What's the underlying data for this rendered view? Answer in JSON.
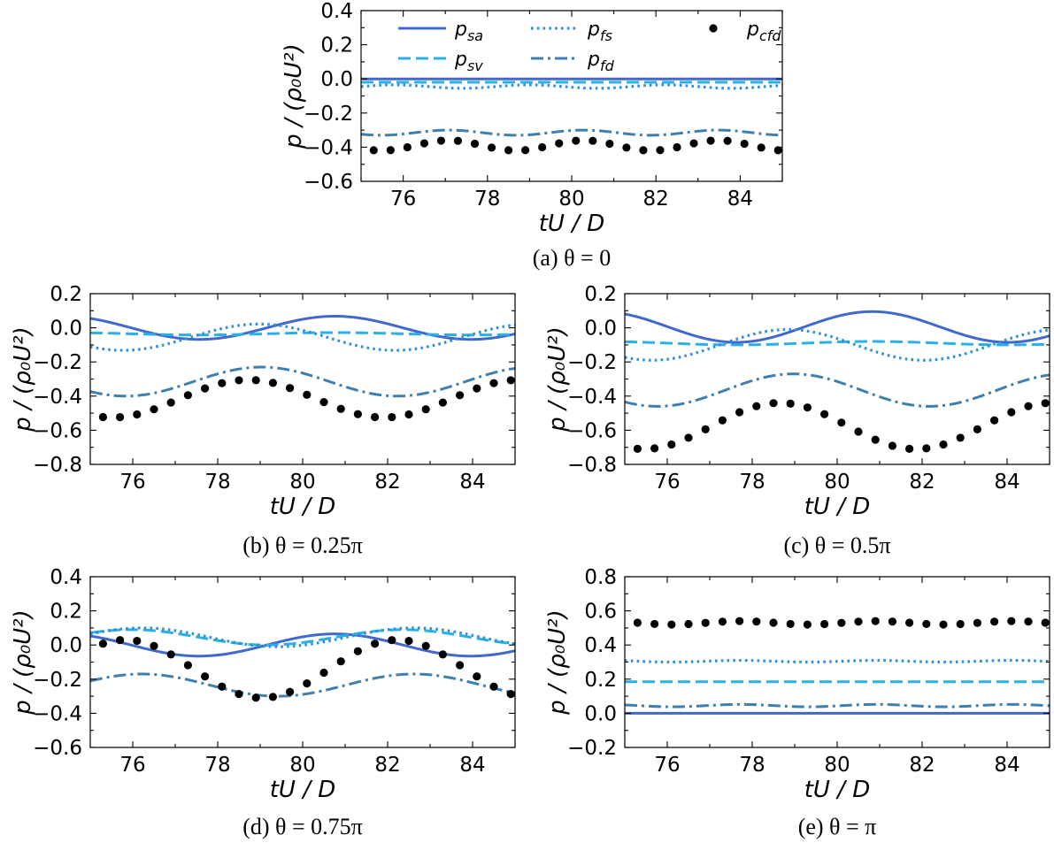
{
  "colors": {
    "p_sa": "#4169cc",
    "p_sv": "#29b0e8",
    "p_fs": "#2f8fe0",
    "p_fd": "#3f7fb0",
    "p_cfd": "#000000"
  },
  "legend": {
    "placement": "top (inside panel a)",
    "entries": [
      {
        "key": "p_sa",
        "base": "p",
        "sub": "sa",
        "style": "solid"
      },
      {
        "key": "p_sv",
        "base": "p",
        "sub": "sv",
        "style": "dashed"
      },
      {
        "key": "p_fs",
        "base": "p",
        "sub": "fs",
        "style": "dotted"
      },
      {
        "key": "p_fd",
        "base": "p",
        "sub": "fd",
        "style": "dashdot"
      },
      {
        "key": "p_cfd",
        "base": "p",
        "sub": "cfd",
        "style": "markers"
      }
    ]
  },
  "axis_labels": {
    "x": "tU / D",
    "y": "p / (ρ₀U²)"
  },
  "chart_data": [
    {
      "id": "a",
      "type": "line",
      "caption": "(a) θ = 0",
      "xlim": [
        75,
        85
      ],
      "ylim": [
        -0.6,
        0.4
      ],
      "xticks": [
        76,
        78,
        80,
        82,
        84
      ],
      "xtick_labels": [
        "76",
        "78",
        "80",
        "82",
        "84"
      ],
      "yticks": [
        -0.6,
        -0.4,
        -0.2,
        0.0,
        0.2,
        0.4
      ],
      "ytick_labels": [
        "−0.6",
        "−0.4",
        "−0.2",
        "0.0",
        "0.2",
        "0.4"
      ],
      "series": [
        {
          "key": "p_sa",
          "name": "p_sa",
          "mean": 0.0,
          "amplitude": 0.0,
          "period": 6.4,
          "phase": 0
        },
        {
          "key": "p_sv",
          "name": "p_sv",
          "mean": -0.02,
          "amplitude": 0.0,
          "period": 6.4,
          "phase": 0
        },
        {
          "key": "p_fs",
          "name": "p_fs",
          "mean": -0.045,
          "amplitude": 0.01,
          "period": 3.2,
          "phase": 0
        },
        {
          "key": "p_fd",
          "name": "p_fd",
          "mean": -0.315,
          "amplitude": 0.015,
          "period": 3.2,
          "phase": 0.6
        },
        {
          "key": "p_cfd",
          "name": "p_cfd",
          "mean": -0.39,
          "amplitude": 0.03,
          "period": 3.2,
          "phase": 0.6,
          "markers": {
            "start": 75.3,
            "step": 0.4
          }
        }
      ]
    },
    {
      "id": "b",
      "type": "line",
      "caption": "(b) θ = 0.25π",
      "xlim": [
        75,
        85
      ],
      "ylim": [
        -0.8,
        0.2
      ],
      "xticks": [
        76,
        78,
        80,
        82,
        84
      ],
      "xtick_labels": [
        "76",
        "78",
        "80",
        "82",
        "84"
      ],
      "yticks": [
        -0.8,
        -0.6,
        -0.4,
        -0.2,
        0.0,
        0.2
      ],
      "ytick_labels": [
        "−0.8",
        "−0.6",
        "−0.4",
        "−0.2",
        "0.0",
        "0.2"
      ],
      "series": [
        {
          "key": "p_sa",
          "name": "p_sa",
          "mean": 0.0,
          "amplitude": 0.068,
          "period": 6.4,
          "phase": 0.35
        },
        {
          "key": "p_sv",
          "name": "p_sv",
          "mean": -0.035,
          "amplitude": 0.007,
          "period": 6.4,
          "phase": 0.35
        },
        {
          "key": "p_fs",
          "name": "p_fs",
          "mean": -0.055,
          "amplitude": 0.077,
          "period": 6.4,
          "phase": 0.63
        },
        {
          "key": "p_fd",
          "name": "p_fd",
          "mean": -0.315,
          "amplitude": 0.085,
          "period": 6.4,
          "phase": 0.62
        },
        {
          "key": "p_cfd",
          "name": "p_cfd",
          "mean": -0.415,
          "amplitude": 0.11,
          "period": 6.4,
          "phase": 0.67,
          "markers": {
            "start": 75.3,
            "step": 0.4
          }
        }
      ]
    },
    {
      "id": "c",
      "type": "line",
      "caption": "(c) θ = 0.5π",
      "xlim": [
        75,
        85
      ],
      "ylim": [
        -0.8,
        0.2
      ],
      "xticks": [
        76,
        78,
        80,
        82,
        84
      ],
      "xtick_labels": [
        "76",
        "78",
        "80",
        "82",
        "84"
      ],
      "yticks": [
        -0.8,
        -0.6,
        -0.4,
        -0.2,
        0.0,
        0.2
      ],
      "ytick_labels": [
        "−0.8",
        "−0.6",
        "−0.4",
        "−0.2",
        "0.0",
        "0.2"
      ],
      "series": [
        {
          "key": "p_sa",
          "name": "p_sa",
          "mean": 0.005,
          "amplitude": 0.09,
          "period": 6.4,
          "phase": 0.34
        },
        {
          "key": "p_sv",
          "name": "p_sv",
          "mean": -0.09,
          "amplitude": 0.01,
          "period": 6.4,
          "phase": 0.34
        },
        {
          "key": "p_fs",
          "name": "p_fs",
          "mean": -0.1,
          "amplitude": 0.09,
          "period": 6.4,
          "phase": 0.65
        },
        {
          "key": "p_fd",
          "name": "p_fd",
          "mean": -0.365,
          "amplitude": 0.095,
          "period": 6.4,
          "phase": 0.63
        },
        {
          "key": "p_cfd",
          "name": "p_cfd",
          "mean": -0.575,
          "amplitude": 0.135,
          "period": 6.4,
          "phase": 0.68,
          "markers": {
            "start": 75.3,
            "step": 0.4
          }
        }
      ]
    },
    {
      "id": "d",
      "type": "line",
      "caption": "(d) θ = 0.75π",
      "xlim": [
        75,
        85
      ],
      "ylim": [
        -0.6,
        0.4
      ],
      "xticks": [
        76,
        78,
        80,
        82,
        84
      ],
      "xtick_labels": [
        "76",
        "78",
        "80",
        "82",
        "84"
      ],
      "yticks": [
        -0.6,
        -0.4,
        -0.2,
        0.0,
        0.2,
        0.4
      ],
      "ytick_labels": [
        "−0.6",
        "−0.4",
        "−0.2",
        "0.0",
        "0.2",
        "0.4"
      ],
      "series": [
        {
          "key": "p_sa",
          "name": "p_sa",
          "mean": 0.0,
          "amplitude": 0.065,
          "period": 6.4,
          "phase": 0.35
        },
        {
          "key": "p_sv",
          "name": "p_sv",
          "mean": 0.045,
          "amplitude": 0.045,
          "period": 6.4,
          "phase": 0.1
        },
        {
          "key": "p_fs",
          "name": "p_fs",
          "mean": 0.045,
          "amplitude": 0.055,
          "period": 6.4,
          "phase": 0.06
        },
        {
          "key": "p_fd",
          "name": "p_fd",
          "mean": -0.235,
          "amplitude": 0.065,
          "period": 6.4,
          "phase": 0.06
        },
        {
          "key": "p_cfd",
          "name": "p_cfd",
          "mean": -0.14,
          "amplitude": 0.17,
          "period": 6.4,
          "phase": 0.12,
          "markers": {
            "start": 75.3,
            "step": 0.4
          }
        }
      ]
    },
    {
      "id": "e",
      "type": "line",
      "caption": "(e) θ = π",
      "xlim": [
        75,
        85
      ],
      "ylim": [
        -0.2,
        0.8
      ],
      "xticks": [
        76,
        78,
        80,
        82,
        84
      ],
      "xtick_labels": [
        "76",
        "78",
        "80",
        "82",
        "84"
      ],
      "yticks": [
        -0.2,
        0.0,
        0.2,
        0.4,
        0.6,
        0.8
      ],
      "ytick_labels": [
        "−0.2",
        "0.0",
        "0.2",
        "0.4",
        "0.6",
        "0.8"
      ],
      "series": [
        {
          "key": "p_sa",
          "name": "p_sa",
          "mean": 0.0,
          "amplitude": 0.0,
          "period": 6.4,
          "phase": 0
        },
        {
          "key": "p_sv",
          "name": "p_sv",
          "mean": 0.185,
          "amplitude": 0.0,
          "period": 6.4,
          "phase": 0
        },
        {
          "key": "p_fs",
          "name": "p_fs",
          "mean": 0.305,
          "amplitude": 0.005,
          "period": 3.2,
          "phase": 0.4
        },
        {
          "key": "p_fd",
          "name": "p_fd",
          "mean": 0.045,
          "amplitude": 0.007,
          "period": 3.2,
          "phase": 0.4
        },
        {
          "key": "p_cfd",
          "name": "p_cfd",
          "mean": 0.53,
          "amplitude": 0.01,
          "period": 3.2,
          "phase": 0.4,
          "markers": {
            "start": 75.3,
            "step": 0.4
          }
        }
      ]
    }
  ]
}
